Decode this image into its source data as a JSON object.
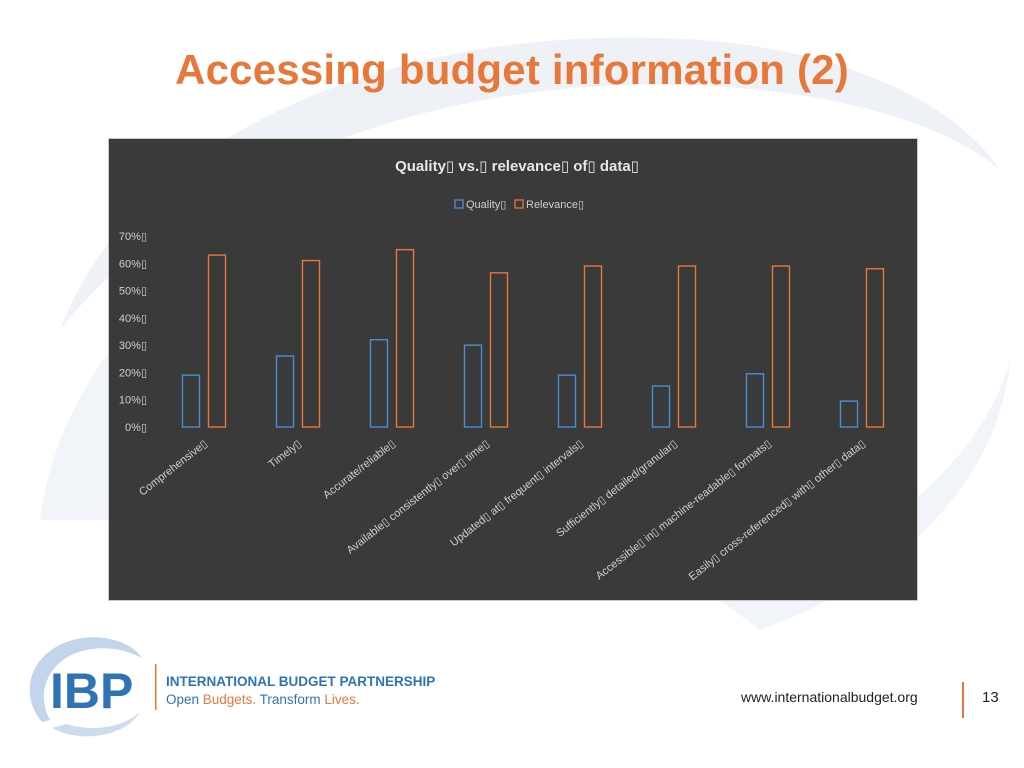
{
  "slide": {
    "title": "Accessing budget information (2)",
    "url": "www.internationalbudget.org",
    "page_number": "13"
  },
  "logo": {
    "mark": "IBP",
    "org_name": "INTERNATIONAL BUDGET PARTNERSHIP",
    "tagline_1": "Open ",
    "tagline_2": "Budgets. ",
    "tagline_3": "Transform ",
    "tagline_4": "Lives."
  },
  "colors": {
    "accent": "#e8773a",
    "quality": "#4a8fd4",
    "relevance": "#e8773a",
    "chart_bg": "#3a3a3a",
    "logo_blue": "#2e74b5"
  },
  "chart_data": {
    "type": "bar",
    "title": "Quality▯ vs.▯ relevance▯ of▯ data▯",
    "categories": [
      "Comprehensive▯",
      "Timely▯",
      "Accurate/reliable▯",
      "Available▯ consistently▯ over▯ time▯",
      "Updated▯ at▯ frequent▯ intervals▯",
      "Sufficiently▯ detailed/granular▯",
      "Accessible▯ in▯ machine-readable▯ formats▯",
      "Easily▯ cross-referenced▯ with▯ other▯ data▯"
    ],
    "series": [
      {
        "name": "Quality▯",
        "values": [
          19,
          26,
          32,
          30,
          19,
          15,
          19.5,
          9.5
        ]
      },
      {
        "name": "Relevance▯",
        "values": [
          63,
          61,
          65,
          56.5,
          59,
          59,
          59,
          58
        ]
      }
    ],
    "ylim": [
      0,
      70
    ],
    "yticks": [
      "0%▯",
      "10%▯",
      "20%▯",
      "30%▯",
      "40%▯",
      "50%▯",
      "60%▯",
      "70%▯"
    ],
    "xlabel": "",
    "ylabel": "",
    "grid": false,
    "legend_position": "top"
  }
}
